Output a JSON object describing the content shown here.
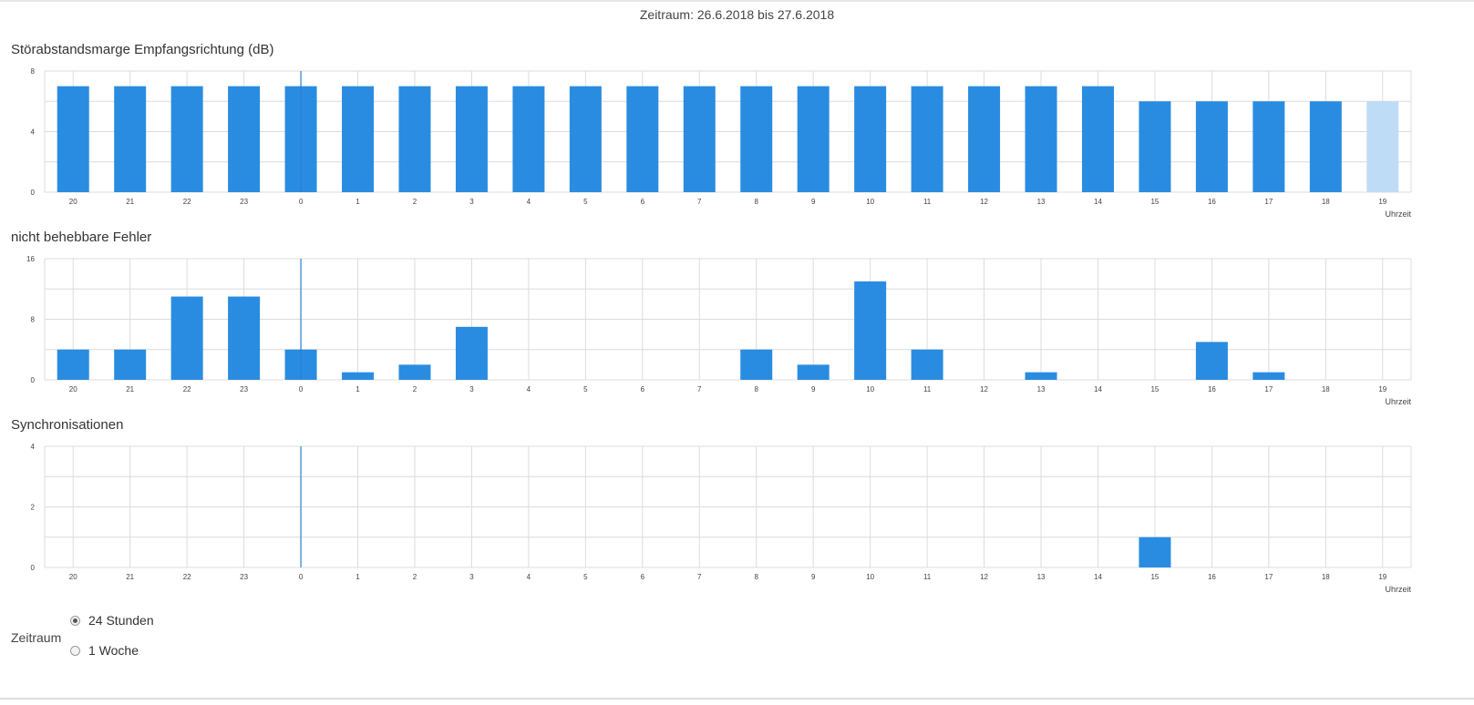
{
  "period_label": "Zeitraum: 26.6.2018 bis 27.6.2018",
  "colors": {
    "bar": "#2a8ce0",
    "bar_partial": "#bedcf5",
    "grid": "#dcdcdc",
    "marker": "#2a7fd4"
  },
  "chart_data": [
    {
      "type": "bar",
      "title": "Störabstandsmarge Empfangsrichtung (dB)",
      "categories": [
        "20",
        "21",
        "22",
        "23",
        "0",
        "1",
        "2",
        "3",
        "4",
        "5",
        "6",
        "7",
        "8",
        "9",
        "10",
        "11",
        "12",
        "13",
        "14",
        "15",
        "16",
        "17",
        "18",
        "19"
      ],
      "values": [
        7,
        7,
        7,
        7,
        7,
        7,
        7,
        7,
        7,
        7,
        7,
        7,
        7,
        7,
        7,
        7,
        7,
        7,
        7,
        6,
        6,
        6,
        6,
        6
      ],
      "partial_last": true,
      "ylim": [
        0,
        8
      ],
      "yticks": [
        "8",
        "4",
        "0"
      ],
      "xlabel": "Uhrzeit",
      "grid": true,
      "midnight_marker": "0"
    },
    {
      "type": "bar",
      "title": "nicht behebbare Fehler",
      "categories": [
        "20",
        "21",
        "22",
        "23",
        "0",
        "1",
        "2",
        "3",
        "4",
        "5",
        "6",
        "7",
        "8",
        "9",
        "10",
        "11",
        "12",
        "13",
        "14",
        "15",
        "16",
        "17",
        "18",
        "19"
      ],
      "values": [
        4,
        4,
        11,
        11,
        4,
        1,
        2,
        7,
        0,
        0,
        0,
        0,
        4,
        2,
        13,
        4,
        0,
        1,
        0,
        0,
        5,
        1,
        0,
        0
      ],
      "partial_last": false,
      "ylim": [
        0,
        16
      ],
      "yticks": [
        "16",
        "8",
        "0"
      ],
      "xlabel": "Uhrzeit",
      "grid": true,
      "midnight_marker": "0"
    },
    {
      "type": "bar",
      "title": "Synchronisationen",
      "categories": [
        "20",
        "21",
        "22",
        "23",
        "0",
        "1",
        "2",
        "3",
        "4",
        "5",
        "6",
        "7",
        "8",
        "9",
        "10",
        "11",
        "12",
        "13",
        "14",
        "15",
        "16",
        "17",
        "18",
        "19"
      ],
      "values": [
        0,
        0,
        0,
        0,
        0,
        0,
        0,
        0,
        0,
        0,
        0,
        0,
        0,
        0,
        0,
        0,
        0,
        0,
        0,
        1,
        0,
        0,
        0,
        0
      ],
      "partial_last": false,
      "ylim": [
        0,
        4
      ],
      "yticks": [
        "4",
        "2",
        "0"
      ],
      "xlabel": "Uhrzeit",
      "grid": true,
      "midnight_marker": "0"
    }
  ],
  "controls": {
    "label": "Zeitraum",
    "options": [
      {
        "label": "24 Stunden",
        "checked": true
      },
      {
        "label": "1 Woche",
        "checked": false
      }
    ]
  }
}
